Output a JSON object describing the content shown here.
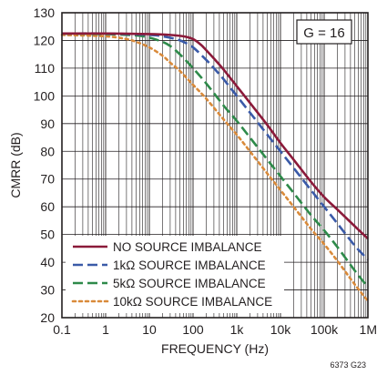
{
  "chart_data": {
    "type": "line",
    "title": "",
    "xlabel": "FREQUENCY (Hz)",
    "ylabel": "CMRR (dB)",
    "x_scale": "log",
    "xlim": [
      0.1,
      1000000
    ],
    "ylim": [
      20,
      130
    ],
    "x_ticks": [
      0.1,
      1,
      10,
      100,
      1000,
      10000,
      100000,
      1000000
    ],
    "x_tick_labels": [
      "0.1",
      "1",
      "10",
      "100",
      "1k",
      "10k",
      "100k",
      "1M"
    ],
    "y_ticks": [
      20,
      30,
      40,
      50,
      60,
      70,
      80,
      90,
      100,
      110,
      120,
      130
    ],
    "y_tick_labels": [
      "20",
      "30",
      "40",
      "50",
      "60",
      "70",
      "80",
      "90",
      "100",
      "110",
      "120",
      "130"
    ],
    "grid": true,
    "legend_position": "bottom-left",
    "annotation": "G = 16",
    "figure_id": "6373 G23",
    "series": [
      {
        "name": "NO SOURCE IMBALANCE",
        "color": "#8b1a3a",
        "style": "solid",
        "x": [
          0.1,
          1,
          10,
          30,
          60,
          100,
          150,
          200,
          300,
          500,
          1000,
          2000,
          5000,
          10000,
          20000,
          50000,
          100000,
          200000,
          500000,
          1000000
        ],
        "y": [
          122.5,
          122.5,
          122.3,
          122,
          121.5,
          120.5,
          118.5,
          116.5,
          113.5,
          109.5,
          103.5,
          97.5,
          89.5,
          83,
          77,
          69,
          63.5,
          59,
          53,
          48.5
        ]
      },
      {
        "name": "1kΩ SOURCE IMBALANCE",
        "color": "#3a5aa8",
        "style": "dashed",
        "x": [
          0.1,
          1,
          10,
          20,
          40,
          60,
          100,
          200,
          300,
          500,
          1000,
          2000,
          5000,
          10000,
          20000,
          50000,
          100000,
          200000,
          500000,
          1000000
        ],
        "y": [
          122.5,
          122.5,
          122,
          121.5,
          120.5,
          119.5,
          117.5,
          113,
          110,
          106,
          100,
          94,
          86,
          80,
          74,
          66,
          60,
          54,
          46,
          41
        ]
      },
      {
        "name": "5kΩ SOURCE IMBALANCE",
        "color": "#2e8a4a",
        "style": "dashed",
        "x": [
          0.1,
          1,
          5,
          10,
          20,
          30,
          50,
          100,
          200,
          500,
          1000,
          2000,
          5000,
          10000,
          20000,
          50000,
          100000,
          200000,
          500000,
          1000000
        ],
        "y": [
          122.5,
          122.3,
          121.8,
          121,
          119.5,
          118,
          115,
          110,
          104.5,
          96.5,
          91,
          85,
          77,
          71,
          65,
          57,
          51.5,
          45.5,
          37,
          31
        ]
      },
      {
        "name": "10kΩ SOURCE IMBALANCE",
        "color": "#d98a3a",
        "style": "dotted",
        "x": [
          0.1,
          1,
          3,
          5,
          10,
          20,
          30,
          50,
          100,
          200,
          500,
          1000,
          2000,
          5000,
          10000,
          20000,
          50000,
          100000,
          200000,
          500000,
          1000000
        ],
        "y": [
          122,
          121.5,
          120.5,
          119.5,
          117.5,
          114.5,
          112,
          109,
          104,
          99,
          91.5,
          86,
          80,
          72,
          66,
          60,
          52,
          46.5,
          40.5,
          32,
          26
        ]
      }
    ]
  }
}
